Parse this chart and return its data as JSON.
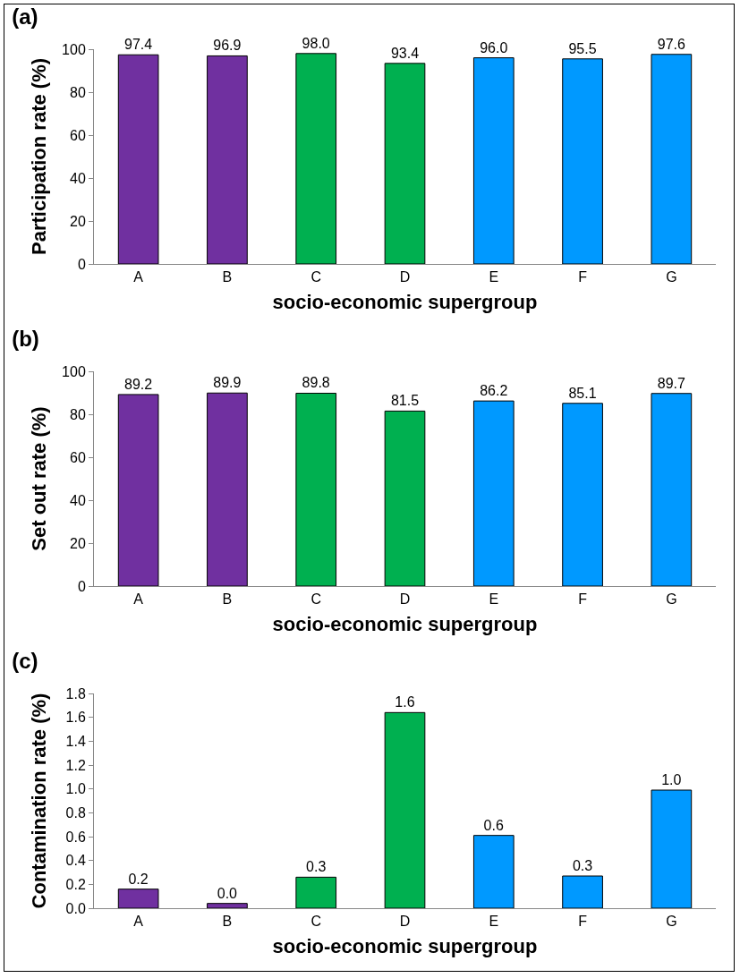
{
  "chart_data": [
    {
      "type": "bar",
      "title": "(a)",
      "xlabel": "socio-economic supergroup",
      "ylabel": "Participation rate (%)",
      "categories": [
        "A",
        "B",
        "C",
        "D",
        "E",
        "F",
        "G"
      ],
      "values": [
        97.4,
        96.9,
        98.0,
        93.4,
        96.0,
        95.5,
        97.6
      ],
      "value_labels": [
        "97.4",
        "96.9",
        "98.0",
        "93.4",
        "96.0",
        "95.5",
        "97.6"
      ],
      "colors": [
        "#7030a0",
        "#7030a0",
        "#00b050",
        "#00b050",
        "#0099ff",
        "#0099ff",
        "#0099ff"
      ],
      "ylim": [
        0,
        100
      ],
      "yticks": [
        0,
        20,
        40,
        60,
        80,
        100
      ],
      "grid": false
    },
    {
      "type": "bar",
      "title": "(b)",
      "xlabel": "socio-economic supergroup",
      "ylabel": "Set out rate (%)",
      "categories": [
        "A",
        "B",
        "C",
        "D",
        "E",
        "F",
        "G"
      ],
      "values": [
        89.2,
        89.9,
        89.8,
        81.5,
        86.2,
        85.1,
        89.7
      ],
      "value_labels": [
        "89.2",
        "89.9",
        "89.8",
        "81.5",
        "86.2",
        "85.1",
        "89.7"
      ],
      "colors": [
        "#7030a0",
        "#7030a0",
        "#00b050",
        "#00b050",
        "#0099ff",
        "#0099ff",
        "#0099ff"
      ],
      "ylim": [
        0,
        100
      ],
      "yticks": [
        0,
        20,
        40,
        60,
        80,
        100
      ],
      "grid": false
    },
    {
      "type": "bar",
      "title": "(c)",
      "xlabel": "socio-economic supergroup",
      "ylabel": "Contamination rate (%)",
      "categories": [
        "A",
        "B",
        "C",
        "D",
        "E",
        "F",
        "G"
      ],
      "values": [
        0.16,
        0.04,
        0.26,
        1.64,
        0.61,
        0.27,
        0.99
      ],
      "value_labels": [
        "0.2",
        "0.0",
        "0.3",
        "1.6",
        "0.6",
        "0.3",
        "1.0"
      ],
      "colors": [
        "#7030a0",
        "#7030a0",
        "#00b050",
        "#00b050",
        "#0099ff",
        "#0099ff",
        "#0099ff"
      ],
      "ylim": [
        0,
        1.8
      ],
      "yticks": [
        {
          "value": 0,
          "label": "0.0"
        },
        {
          "value": 0.2,
          "label": "0.2"
        },
        {
          "value": 0.4,
          "label": "0.4"
        },
        {
          "value": 0.6,
          "label": "0.6"
        },
        {
          "value": 0.8,
          "label": "0.8"
        },
        {
          "value": 1.0,
          "label": "1.0"
        },
        {
          "value": 1.2,
          "label": "1.2"
        },
        {
          "value": 1.4,
          "label": "1.4"
        },
        {
          "value": 1.6,
          "label": "1.6"
        },
        {
          "value": 1.8,
          "label": "1.8"
        }
      ],
      "grid": false
    }
  ]
}
